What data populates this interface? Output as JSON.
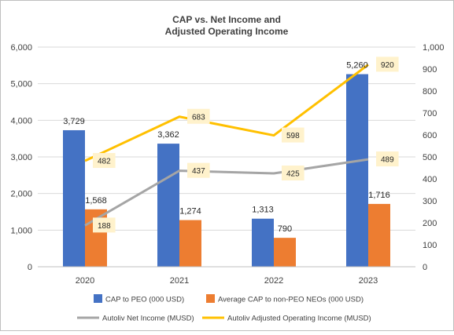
{
  "colors": {
    "bar_peo": "#4472C4",
    "bar_neo": "#ED7D31",
    "line_net_income": "#A5A5A5",
    "line_operating_income": "#FFC000",
    "label_box": "#FFF2CC",
    "grid": "#D9D9D9",
    "border": "#BFBFBF",
    "text": "#404040"
  },
  "chart_data": {
    "type": "bar",
    "title_line1": "CAP vs. Net Income and",
    "title_line2": "Adjusted Operating Income",
    "categories": [
      "2020",
      "2021",
      "2022",
      "2023"
    ],
    "left_axis": {
      "ylim": [
        0,
        6000
      ],
      "ticks": [
        0,
        1000,
        2000,
        3000,
        4000,
        5000,
        6000
      ],
      "tick_labels": [
        "0",
        "1,000",
        "2,000",
        "3,000",
        "4,000",
        "5,000",
        "6,000"
      ]
    },
    "right_axis": {
      "ylim": [
        0,
        1000
      ],
      "ticks": [
        0,
        100,
        200,
        300,
        400,
        500,
        600,
        700,
        800,
        900,
        1000
      ],
      "tick_labels": [
        "0",
        "100",
        "200",
        "300",
        "400",
        "500",
        "600",
        "700",
        "800",
        "900",
        "1,000"
      ]
    },
    "bar_series": [
      {
        "name": "CAP to PEO (000 USD)",
        "color_key": "bar_peo",
        "values": [
          3729,
          3362,
          1313,
          5260
        ],
        "labels": [
          "3,729",
          "3,362",
          "1,313",
          "5,260"
        ]
      },
      {
        "name": "Average CAP to non-PEO NEOs (000 USD)",
        "color_key": "bar_neo",
        "values": [
          1568,
          1274,
          790,
          1716
        ],
        "labels": [
          "1,568",
          "1,274",
          "790",
          "1,716"
        ]
      }
    ],
    "line_series": [
      {
        "name": "Autoliv Net Income (MUSD)",
        "color_key": "line_net_income",
        "axis": "right",
        "values": [
          188,
          437,
          425,
          489
        ],
        "labels": [
          "188",
          "437",
          "425",
          "489"
        ]
      },
      {
        "name": "Autoliv Adjusted Operating Income (MUSD)",
        "color_key": "line_operating_income",
        "axis": "right",
        "values": [
          482,
          683,
          598,
          920
        ],
        "labels": [
          "482",
          "683",
          "598",
          "920"
        ]
      }
    ],
    "grid": true,
    "legend_position": "bottom"
  }
}
